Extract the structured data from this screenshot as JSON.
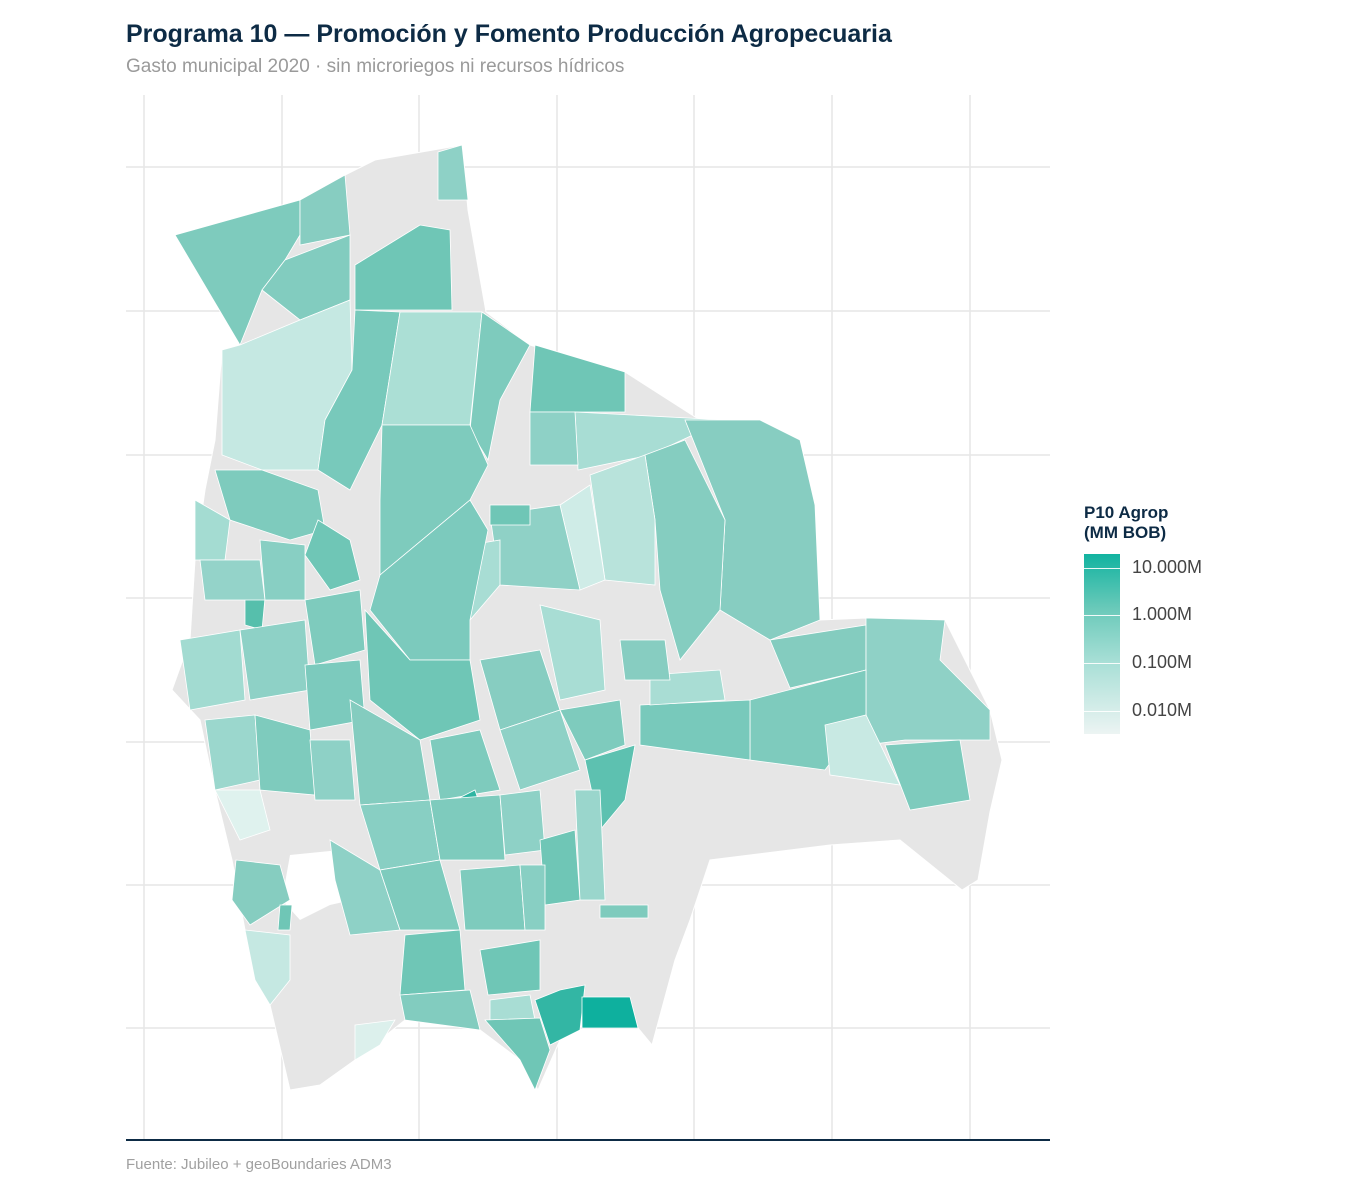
{
  "title": "Programa 10 — Promoción y Fomento Producción Agropecuaria",
  "subtitle": "Gasto municipal 2020 · sin microriegos ni recursos hídricos",
  "caption": "Fuente: Jubileo + geoBoundaries ADM3",
  "legend": {
    "title_line1": "P10 Agrop",
    "title_line2": "(MM BOB)",
    "labels": [
      "10.000M",
      "1.000M",
      "0.100M",
      "0.010M"
    ]
  },
  "colors": {
    "no_data": "#e6e6e6",
    "scale_high": "#12b3a0",
    "scale_mid": "#72c9bb",
    "scale_low": "#c5e8e2",
    "scale_min": "#ecf4f3",
    "title": "#0d2b45",
    "axis_line": "#0d2b45"
  }
}
